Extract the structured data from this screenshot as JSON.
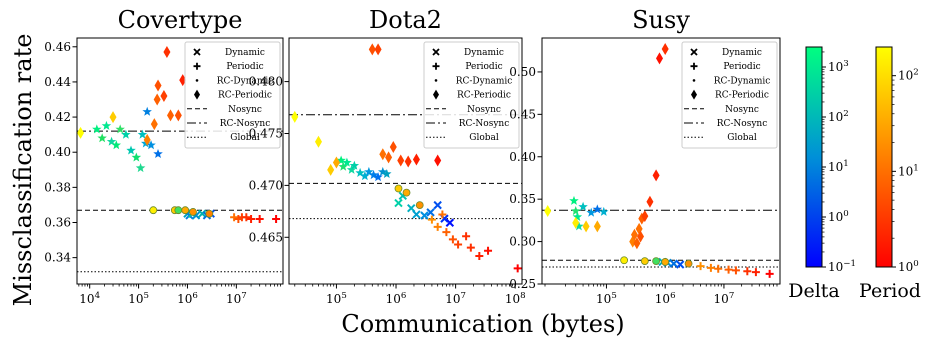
{
  "figure": {
    "ylabel": "Missclassification rate",
    "xlabel": "Communication (bytes)",
    "colorbars": [
      {
        "label": "Delta",
        "ticks": [
          "10^-1",
          "10^0",
          "10^1",
          "10^2",
          "10^3"
        ],
        "colors": [
          "#0000ff",
          "#00ff80"
        ]
      },
      {
        "label": "Period",
        "ticks": [
          "10^0",
          "10^1",
          "10^2"
        ],
        "colors": [
          "#ff0000",
          "#ffff00"
        ]
      }
    ],
    "legend_labels": [
      "Dynamic",
      "Periodic",
      "RC-Dynamic",
      "RC-Periodic",
      "Nosync",
      "RC-Nosync",
      "Global"
    ]
  },
  "chart_data": [
    {
      "type": "scatter",
      "title": "Covertype",
      "xscale": "log",
      "xlim": [
        5500,
        90000000
      ],
      "ylim": [
        0.325,
        0.465
      ],
      "xticks": [
        {
          "v": 10000,
          "label": "10^4"
        },
        {
          "v": 100000,
          "label": "10^5"
        },
        {
          "v": 1000000,
          "label": "10^6"
        },
        {
          "v": 10000000,
          "label": "10^7"
        }
      ],
      "yticks": [
        0.34,
        0.36,
        0.38,
        0.4,
        0.42,
        0.44,
        0.46
      ],
      "legend_position": "top-right",
      "hlines": [
        {
          "name": "Nosync",
          "y": 0.367,
          "style": "dashed"
        },
        {
          "name": "RC-Nosync",
          "y": 0.412,
          "style": "dashdot"
        },
        {
          "name": "Global",
          "y": 0.332,
          "style": "dotted"
        }
      ],
      "series": [
        {
          "name": "RC-Dynamic",
          "marker": "star",
          "points": [
            [
              14000,
              0.413,
              "#00f080"
            ],
            [
              18000,
              0.408,
              "#20e060"
            ],
            [
              22000,
              0.415,
              "#00e890"
            ],
            [
              28000,
              0.406,
              "#10d8a0"
            ],
            [
              35000,
              0.404,
              "#00e878"
            ],
            [
              42000,
              0.413,
              "#30e068"
            ],
            [
              55000,
              0.41,
              "#00d0a8"
            ],
            [
              70000,
              0.401,
              "#00c8b0"
            ],
            [
              90000,
              0.397,
              "#10e070"
            ],
            [
              110000,
              0.391,
              "#20d890"
            ],
            [
              140000,
              0.405,
              "#00a8d8"
            ],
            [
              180000,
              0.404,
              "#0090e0"
            ],
            [
              150000,
              0.423,
              "#0080e0"
            ],
            [
              250000,
              0.399,
              "#0070e8"
            ],
            [
              120000,
              0.41,
              "#00c0c0"
            ]
          ]
        },
        {
          "name": "RC-Periodic",
          "marker": "diamond",
          "points": [
            [
              6500,
              0.411,
              "#ffff00"
            ],
            [
              30000,
              0.42,
              "#ffcc00"
            ],
            [
              150000,
              0.407,
              "#ff8000"
            ],
            [
              210000,
              0.416,
              "#ff7000"
            ],
            [
              240000,
              0.43,
              "#ff6000"
            ],
            [
              250000,
              0.438,
              "#ff5000"
            ],
            [
              330000,
              0.432,
              "#ff4000"
            ],
            [
              380000,
              0.457,
              "#ff3000"
            ],
            [
              450000,
              0.421,
              "#ff6000"
            ],
            [
              650000,
              0.421,
              "#ff5000"
            ],
            [
              800000,
              0.441,
              "#ff2000"
            ]
          ]
        },
        {
          "name": "Dynamic",
          "marker": "x",
          "points": [
            [
              1000000,
              0.365,
              "#00a0c0"
            ],
            [
              1100000,
              0.364,
              "#0080e0"
            ],
            [
              1250000,
              0.365,
              "#00c0a0"
            ],
            [
              1500000,
              0.364,
              "#0090d0"
            ],
            [
              2000000,
              0.365,
              "#00b0b0"
            ],
            [
              2500000,
              0.364,
              "#0070e0"
            ],
            [
              3000000,
              0.365,
              "#0050f0"
            ]
          ]
        },
        {
          "name": "Periodic",
          "marker": "plus",
          "points": [
            [
              9000000,
              0.363,
              "#ff7000"
            ],
            [
              11000000,
              0.362,
              "#ff5000"
            ],
            [
              13000000,
              0.363,
              "#ff4000"
            ],
            [
              16000000,
              0.363,
              "#ff3000"
            ],
            [
              20000000,
              0.362,
              "#ff2000"
            ],
            [
              30000000,
              0.362,
              "#ff1000"
            ],
            [
              65000000,
              0.362,
              "#ff0000"
            ]
          ]
        },
        {
          "name": "Global",
          "marker": "circle",
          "points": [
            [
              200000,
              0.367,
              "#ffee00"
            ],
            [
              550000,
              0.367,
              "#ffcc00"
            ],
            [
              650000,
              0.367,
              "#40e060"
            ],
            [
              900000,
              0.367,
              "#ffaa00"
            ],
            [
              1300000,
              0.366,
              "#ff9000"
            ],
            [
              2800000,
              0.365,
              "#ff8000"
            ]
          ]
        }
      ]
    },
    {
      "type": "scatter",
      "title": "Dota2",
      "xscale": "log",
      "xlim": [
        16000,
        130000000
      ],
      "ylim": [
        0.4605,
        0.4842
      ],
      "xticks": [
        {
          "v": 100000,
          "label": "10^5"
        },
        {
          "v": 1000000,
          "label": "10^6"
        },
        {
          "v": 10000000,
          "label": "10^7"
        },
        {
          "v": 100000000,
          "label": "10^8"
        }
      ],
      "yticks": [
        0.465,
        0.47,
        0.475,
        0.48
      ],
      "legend_position": "top-right",
      "hlines": [
        {
          "name": "Nosync",
          "y": 0.4702,
          "style": "dashed"
        },
        {
          "name": "RC-Nosync",
          "y": 0.4768,
          "style": "dashdot"
        },
        {
          "name": "Global",
          "y": 0.4668,
          "style": "dotted"
        }
      ],
      "series": [
        {
          "name": "RC-Dynamic",
          "marker": "star",
          "points": [
            [
              120000,
              0.4724,
              "#00f080"
            ],
            [
              130000,
              0.4718,
              "#20e070"
            ],
            [
              150000,
              0.4722,
              "#00e890"
            ],
            [
              180000,
              0.4715,
              "#10d8a0"
            ],
            [
              200000,
              0.4719,
              "#00d0a8"
            ],
            [
              250000,
              0.4712,
              "#00c0c0"
            ],
            [
              300000,
              0.4709,
              "#00b0d0"
            ],
            [
              350000,
              0.4713,
              "#0098e0"
            ],
            [
              420000,
              0.471,
              "#0080e8"
            ],
            [
              500000,
              0.4708,
              "#0070f0"
            ],
            [
              600000,
              0.4713,
              "#0090d0"
            ],
            [
              700000,
              0.4711,
              "#00a0c0"
            ]
          ]
        },
        {
          "name": "RC-Periodic",
          "marker": "diamond",
          "points": [
            [
              20000,
              0.4766,
              "#ffff00"
            ],
            [
              50000,
              0.4742,
              "#ffee00"
            ],
            [
              80000,
              0.4715,
              "#ffcc00"
            ],
            [
              100000,
              0.4722,
              "#ffaa00"
            ],
            [
              400000,
              0.4831,
              "#ff5000"
            ],
            [
              500000,
              0.4831,
              "#ff4000"
            ],
            [
              600000,
              0.473,
              "#ff7000"
            ],
            [
              750000,
              0.4727,
              "#ff6000"
            ],
            [
              900000,
              0.4737,
              "#ff5000"
            ],
            [
              1200000,
              0.4724,
              "#ff4000"
            ],
            [
              1600000,
              0.4723,
              "#ff3000"
            ],
            [
              2200000,
              0.4725,
              "#ff2000"
            ],
            [
              5000000,
              0.4724,
              "#ff1000"
            ]
          ]
        },
        {
          "name": "Dynamic",
          "marker": "x",
          "points": [
            [
              1100000,
              0.4683,
              "#00d0a8"
            ],
            [
              1300000,
              0.469,
              "#00c0b0"
            ],
            [
              1800000,
              0.4678,
              "#00b0c0"
            ],
            [
              2200000,
              0.4672,
              "#00a0d0"
            ],
            [
              3000000,
              0.4671,
              "#0090e0"
            ],
            [
              3800000,
              0.4674,
              "#0070e8"
            ],
            [
              5000000,
              0.4681,
              "#0050f0"
            ],
            [
              6500000,
              0.4668,
              "#0030f8"
            ],
            [
              8000000,
              0.4664,
              "#0010ff"
            ]
          ]
        },
        {
          "name": "Periodic",
          "marker": "plus",
          "points": [
            [
              4000000,
              0.4667,
              "#ff9000"
            ],
            [
              5000000,
              0.466,
              "#ff8000"
            ],
            [
              6000000,
              0.4672,
              "#ff7000"
            ],
            [
              7000000,
              0.4655,
              "#ff6000"
            ],
            [
              9000000,
              0.4648,
              "#ff5000"
            ],
            [
              11000000,
              0.4643,
              "#ff4000"
            ],
            [
              15000000,
              0.4651,
              "#ff3000"
            ],
            [
              18000000,
              0.464,
              "#ff3000"
            ],
            [
              25000000,
              0.4632,
              "#ff2000"
            ],
            [
              35000000,
              0.4637,
              "#ff1000"
            ],
            [
              110000000,
              0.462,
              "#ff0000"
            ]
          ]
        },
        {
          "name": "Global",
          "marker": "circle",
          "points": [
            [
              1100000,
              0.4697,
              "#ffcc00"
            ],
            [
              1500000,
              0.4693,
              "#ffaa00"
            ],
            [
              2500000,
              0.4681,
              "#ff9000"
            ]
          ]
        }
      ]
    },
    {
      "type": "scatter",
      "title": "Susy",
      "xscale": "log",
      "xlim": [
        8000,
        90000000
      ],
      "ylim": [
        0.25,
        0.54
      ],
      "xticks": [
        {
          "v": 100000,
          "label": "10^5"
        },
        {
          "v": 1000000,
          "label": "10^6"
        },
        {
          "v": 10000000,
          "label": "10^7"
        }
      ],
      "yticks": [
        0.25,
        0.3,
        0.35,
        0.4,
        0.45,
        0.5
      ],
      "legend_position": "top-right",
      "hlines": [
        {
          "name": "Nosync",
          "y": 0.278,
          "style": "dashed"
        },
        {
          "name": "RC-Nosync",
          "y": 0.337,
          "style": "dashdot"
        },
        {
          "name": "Global",
          "y": 0.27,
          "style": "dotted"
        }
      ],
      "series": [
        {
          "name": "RC-Dynamic",
          "marker": "star",
          "points": [
            [
              28000,
              0.348,
              "#00f080"
            ],
            [
              30000,
              0.336,
              "#20e070"
            ],
            [
              32000,
              0.329,
              "#00e890"
            ],
            [
              34000,
              0.318,
              "#10d8a0"
            ],
            [
              40000,
              0.341,
              "#00c0c0"
            ],
            [
              55000,
              0.334,
              "#0098e0"
            ],
            [
              70000,
              0.338,
              "#0070e8"
            ],
            [
              90000,
              0.335,
              "#00b0d0"
            ]
          ]
        },
        {
          "name": "RC-Periodic",
          "marker": "diamond",
          "points": [
            [
              10000,
              0.336,
              "#ffff00"
            ],
            [
              30000,
              0.322,
              "#ffee00"
            ],
            [
              45000,
              0.318,
              "#ffcc00"
            ],
            [
              70000,
              0.318,
              "#ffaa00"
            ],
            [
              280000,
              0.3,
              "#ff8000"
            ],
            [
              300000,
              0.308,
              "#ff7000"
            ],
            [
              330000,
              0.298,
              "#ff6000"
            ],
            [
              360000,
              0.315,
              "#ff7000"
            ],
            [
              380000,
              0.306,
              "#ff5000"
            ],
            [
              400000,
              0.327,
              "#ff6000"
            ],
            [
              450000,
              0.33,
              "#ff4000"
            ],
            [
              550000,
              0.347,
              "#ff3000"
            ],
            [
              700000,
              0.378,
              "#ff2000"
            ],
            [
              800000,
              0.516,
              "#ff1000"
            ],
            [
              1000000,
              0.527,
              "#ff3000"
            ]
          ]
        },
        {
          "name": "Dynamic",
          "marker": "x",
          "points": [
            [
              900000,
              0.276,
              "#00b0c0"
            ],
            [
              1100000,
              0.275,
              "#0090d0"
            ],
            [
              1400000,
              0.274,
              "#0070e0"
            ],
            [
              1800000,
              0.273,
              "#0050f0"
            ]
          ]
        },
        {
          "name": "Periodic",
          "marker": "plus",
          "points": [
            [
              4000000,
              0.271,
              "#ff9000"
            ],
            [
              6000000,
              0.269,
              "#ff8000"
            ],
            [
              8000000,
              0.268,
              "#ff7000"
            ],
            [
              12000000,
              0.267,
              "#ff6000"
            ],
            [
              16000000,
              0.266,
              "#ff5000"
            ],
            [
              25000000,
              0.265,
              "#ff3000"
            ],
            [
              35000000,
              0.264,
              "#ff2000"
            ],
            [
              60000000,
              0.262,
              "#ff0000"
            ]
          ]
        },
        {
          "name": "Global",
          "marker": "circle",
          "points": [
            [
              200000,
              0.278,
              "#ffee00"
            ],
            [
              450000,
              0.277,
              "#ffcc00"
            ],
            [
              700000,
              0.277,
              "#40e060"
            ],
            [
              1000000,
              0.276,
              "#ffaa00"
            ],
            [
              2500000,
              0.274,
              "#ff9000"
            ]
          ]
        }
      ]
    }
  ]
}
